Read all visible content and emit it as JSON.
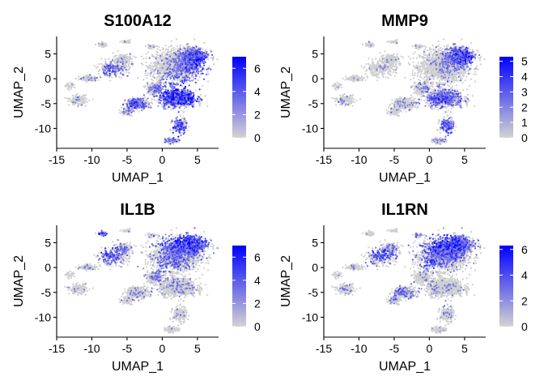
{
  "chart_data": [
    {
      "type": "scatter",
      "title": "S100A12",
      "xlabel": "UMAP_1",
      "ylabel": "UMAP_2",
      "xticks": [
        "-15",
        "-10",
        "-5",
        "0",
        "5"
      ],
      "yticks": [
        "5",
        "0",
        "-5",
        "-10"
      ],
      "xlim": [
        -15,
        8
      ],
      "ylim": [
        -14,
        8.5
      ],
      "legend": {
        "max": 7,
        "ticks": [
          "6",
          "4",
          "2",
          "0"
        ],
        "low_color": "#d3d3d3",
        "high_color": "#0000ff"
      },
      "hotspots": [
        {
          "x": 2.5,
          "y": -3.5,
          "sx": 2.4,
          "sy": 2.3,
          "w": 0.95
        },
        {
          "x": 5.0,
          "y": 3.5,
          "sx": 1.5,
          "sy": 1.8,
          "w": 0.85
        },
        {
          "x": 2.5,
          "y": -10.5,
          "sx": 1.3,
          "sy": 2.0,
          "w": 0.75
        },
        {
          "x": -4.0,
          "y": -5.0,
          "sx": 1.4,
          "sy": 1.0,
          "w": 0.6
        },
        {
          "x": -7.5,
          "y": 1.5,
          "sx": 1.6,
          "sy": 1.5,
          "w": 0.45
        }
      ],
      "base_rate": 0.07
    },
    {
      "type": "scatter",
      "title": "MMP9",
      "xlabel": "UMAP_1",
      "ylabel": "UMAP_2",
      "xticks": [
        "-15",
        "-10",
        "-5",
        "0",
        "5"
      ],
      "yticks": [
        "5",
        "0",
        "-5",
        "-10"
      ],
      "xlim": [
        -15,
        8
      ],
      "ylim": [
        -14,
        8.5
      ],
      "legend": {
        "max": 5.3,
        "ticks": [
          "5",
          "4",
          "3",
          "2",
          "1",
          "0"
        ],
        "low_color": "#d3d3d3",
        "high_color": "#0000ff"
      },
      "hotspots": [
        {
          "x": 5.0,
          "y": 4.5,
          "sx": 1.6,
          "sy": 1.6,
          "w": 0.75
        },
        {
          "x": 2.0,
          "y": -4.0,
          "sx": 2.2,
          "sy": 1.6,
          "w": 0.55
        },
        {
          "x": 2.5,
          "y": -10.0,
          "sx": 1.2,
          "sy": 1.8,
          "w": 0.55
        }
      ],
      "base_rate": 0.04
    },
    {
      "type": "scatter",
      "title": "IL1B",
      "xlabel": "UMAP_1",
      "ylabel": "UMAP_2",
      "xticks": [
        "-15",
        "-10",
        "-5",
        "0",
        "5"
      ],
      "yticks": [
        "5",
        "0",
        "-5",
        "-10"
      ],
      "xlim": [
        -15,
        8
      ],
      "ylim": [
        -14,
        8.5
      ],
      "legend": {
        "max": 7,
        "ticks": [
          "6",
          "4",
          "2",
          "0"
        ],
        "low_color": "#d3d3d3",
        "high_color": "#0000ff"
      },
      "hotspots": [
        {
          "x": 3.5,
          "y": 5.0,
          "sx": 2.6,
          "sy": 1.6,
          "w": 0.9
        },
        {
          "x": -7.5,
          "y": 3.0,
          "sx": 1.5,
          "sy": 1.4,
          "w": 0.65
        },
        {
          "x": -8.5,
          "y": 6.8,
          "sx": 0.8,
          "sy": 0.6,
          "w": 0.8
        },
        {
          "x": 1.0,
          "y": 0.5,
          "sx": 3.0,
          "sy": 2.5,
          "w": 0.3
        }
      ],
      "base_rate": 0.06
    },
    {
      "type": "scatter",
      "title": "IL1RN",
      "xlabel": "UMAP_1",
      "ylabel": "UMAP_2",
      "xticks": [
        "-15",
        "-10",
        "-5",
        "0",
        "5"
      ],
      "yticks": [
        "6",
        "4",
        "2",
        "0"
      ],
      "yticks_axis": [
        "5",
        "0",
        "-5",
        "-10"
      ],
      "xlim": [
        -15,
        8
      ],
      "ylim": [
        -14,
        8.5
      ],
      "legend": {
        "max": 6.3,
        "ticks": [
          "6",
          "4",
          "2",
          "0"
        ],
        "low_color": "#d3d3d3",
        "high_color": "#0000ff"
      },
      "hotspots": [
        {
          "x": 2.5,
          "y": 4.5,
          "sx": 2.8,
          "sy": 2.0,
          "w": 0.8
        },
        {
          "x": -7.0,
          "y": 3.0,
          "sx": 1.6,
          "sy": 1.4,
          "w": 0.55
        },
        {
          "x": 0.0,
          "y": 1.0,
          "sx": 1.2,
          "sy": 1.0,
          "w": 0.55
        },
        {
          "x": -4.5,
          "y": -5.0,
          "sx": 1.4,
          "sy": 1.2,
          "w": 0.3
        }
      ],
      "base_rate": 0.06
    }
  ],
  "shape": {
    "clusters": [
      {
        "x": 2.0,
        "y": 2.5,
        "sx": 3.0,
        "sy": 2.8,
        "n": 1700
      },
      {
        "x": 4.2,
        "y": 4.8,
        "sx": 2.0,
        "sy": 1.6,
        "n": 600
      },
      {
        "x": 2.2,
        "y": -4.0,
        "sx": 2.4,
        "sy": 1.6,
        "n": 800
      },
      {
        "x": -1.0,
        "y": -2.0,
        "sx": 1.2,
        "sy": 1.2,
        "n": 220
      },
      {
        "x": 2.5,
        "y": -9.5,
        "sx": 0.9,
        "sy": 1.4,
        "n": 200
      },
      {
        "x": 1.3,
        "y": -12.5,
        "sx": 0.8,
        "sy": 0.5,
        "n": 90
      },
      {
        "x": -3.5,
        "y": -5.0,
        "sx": 1.5,
        "sy": 1.0,
        "n": 320
      },
      {
        "x": -5.0,
        "y": -6.5,
        "sx": 0.8,
        "sy": 0.8,
        "n": 90
      },
      {
        "x": -7.0,
        "y": 2.0,
        "sx": 2.0,
        "sy": 1.3,
        "n": 280
      },
      {
        "x": -5.5,
        "y": 4.0,
        "sx": 1.3,
        "sy": 1.0,
        "n": 150
      },
      {
        "x": -10.5,
        "y": 0.0,
        "sx": 1.2,
        "sy": 0.5,
        "n": 110
      },
      {
        "x": -13.0,
        "y": -1.5,
        "sx": 0.6,
        "sy": 0.5,
        "n": 35
      },
      {
        "x": -12.0,
        "y": -4.3,
        "sx": 1.1,
        "sy": 0.9,
        "n": 160
      },
      {
        "x": -8.5,
        "y": 6.8,
        "sx": 0.7,
        "sy": 0.4,
        "n": 45
      },
      {
        "x": -5.0,
        "y": 7.3,
        "sx": 0.6,
        "sy": 0.3,
        "n": 30
      },
      {
        "x": -1.5,
        "y": 6.5,
        "sx": 0.7,
        "sy": 0.4,
        "n": 40
      }
    ]
  }
}
